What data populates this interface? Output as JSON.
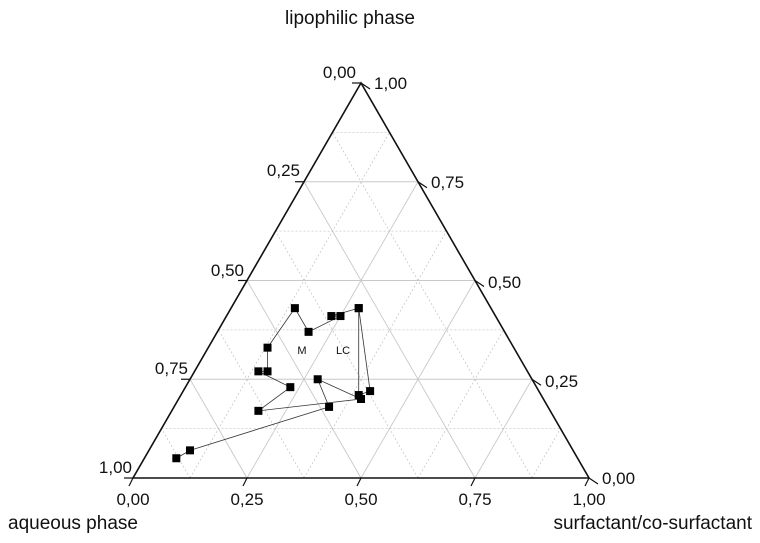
{
  "chart_data": {
    "type": "scatter",
    "subtype": "ternary",
    "vertex_labels": {
      "top": "lipophilic phase",
      "bottom_left": "aqueous phase",
      "bottom_right": "surfactant/co-surfactant"
    },
    "left_edge_ticks": [
      "0,00",
      "0,25",
      "0,50",
      "0,75",
      "1,00"
    ],
    "right_edge_ticks": [
      "1,00",
      "0,75",
      "0,50",
      "0,25",
      "0,00"
    ],
    "bottom_edge_ticks": [
      "0,00",
      "0,25",
      "0,50",
      "0,75",
      "1,00"
    ],
    "grid": true,
    "grid_step": 0.125,
    "region_labels": [
      "M",
      "LC"
    ],
    "series": [
      {
        "points": [
          {
            "surfactant": 0.07,
            "lipophilic": 0.05
          },
          {
            "surfactant": 0.09,
            "lipophilic": 0.07
          },
          {
            "surfactant": 0.34,
            "lipophilic": 0.18
          },
          {
            "surfactant": 0.28,
            "lipophilic": 0.25
          },
          {
            "surfactant": 0.4,
            "lipophilic": 0.2
          },
          {
            "surfactant": 0.19,
            "lipophilic": 0.17
          },
          {
            "surfactant": 0.23,
            "lipophilic": 0.23
          },
          {
            "surfactant": 0.14,
            "lipophilic": 0.27
          },
          {
            "surfactant": 0.16,
            "lipophilic": 0.27
          },
          {
            "surfactant": 0.13,
            "lipophilic": 0.33
          },
          {
            "surfactant": 0.14,
            "lipophilic": 0.43
          },
          {
            "surfactant": 0.2,
            "lipophilic": 0.37
          },
          {
            "surfactant": 0.25,
            "lipophilic": 0.41
          },
          {
            "surfactant": 0.23,
            "lipophilic": 0.41
          },
          {
            "surfactant": 0.28,
            "lipophilic": 0.43
          },
          {
            "surfactant": 0.39,
            "lipophilic": 0.21
          },
          {
            "surfactant": 0.41,
            "lipophilic": 0.22
          },
          {
            "surfactant": 0.28,
            "lipophilic": 0.43
          }
        ]
      }
    ]
  }
}
